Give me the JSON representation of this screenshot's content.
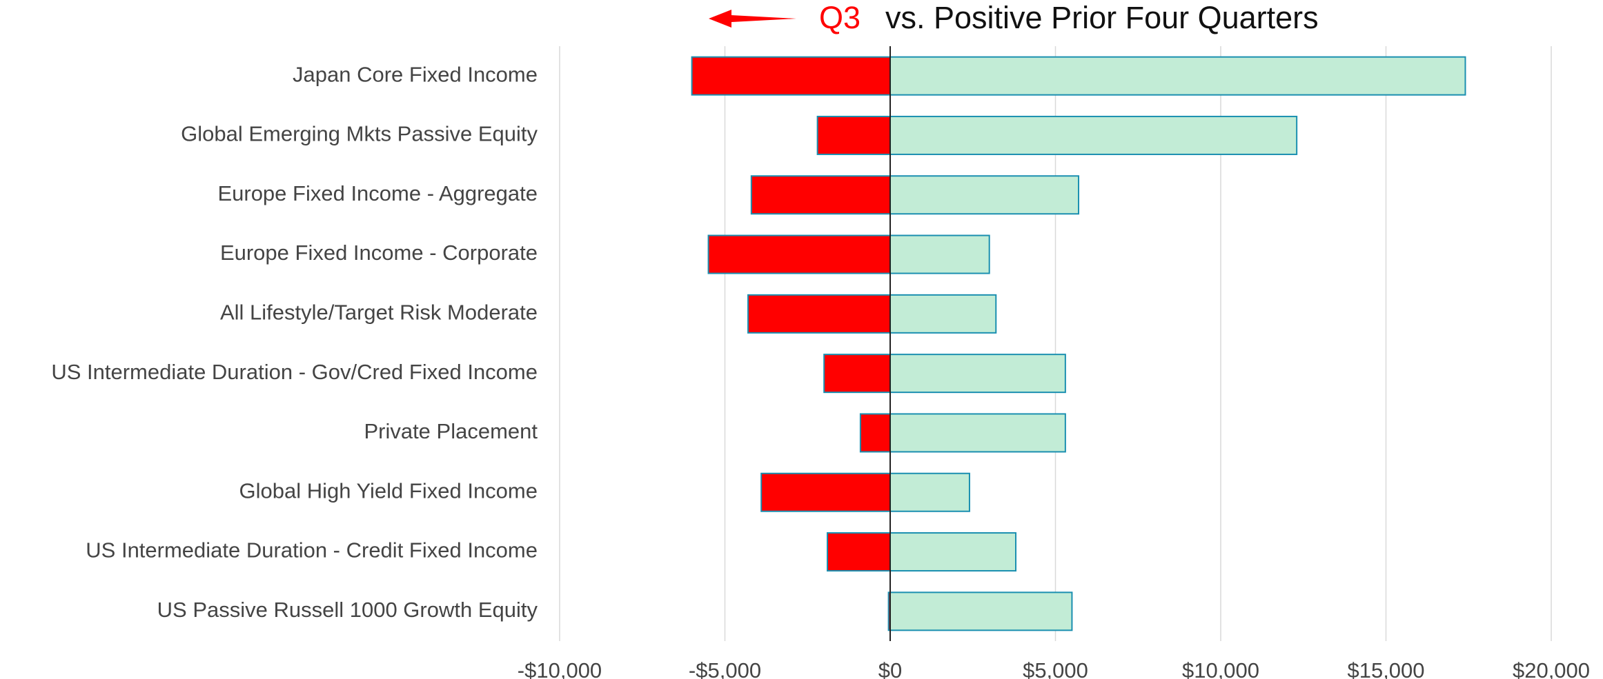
{
  "chart_data": {
    "type": "bar",
    "orientation": "horizontal",
    "title": "vs. Positive Prior Four Quarters",
    "categories": [
      "Japan Core Fixed Income",
      "Global Emerging Mkts Passive Equity",
      "Europe Fixed Income - Aggregate",
      "Europe Fixed Income - Corporate",
      "All Lifestyle/Target Risk Moderate",
      "US Intermediate Duration - Gov/Cred Fixed Income",
      "Private Placement",
      "Global High Yield Fixed Income",
      "US Intermediate Duration - Credit Fixed Income",
      "US Passive Russell 1000 Growth Equity"
    ],
    "series": [
      {
        "name": "Q3",
        "color": "#ff0000",
        "values": [
          -6000,
          -2200,
          -4200,
          -5500,
          -4300,
          -2000,
          -900,
          -3900,
          -1900,
          -50
        ]
      },
      {
        "color": "#c2ecd6",
        "values": [
          17400,
          12300,
          5700,
          3000,
          3200,
          5300,
          5300,
          2400,
          3800,
          5500
        ]
      }
    ],
    "xlim": [
      -10000,
      20000
    ],
    "xticks": [
      {
        "value": -10000,
        "label": "-$10,000"
      },
      {
        "value": -5000,
        "label": "-$5,000"
      },
      {
        "value": 0,
        "label": "$0"
      },
      {
        "value": 5000,
        "label": "$5,000"
      },
      {
        "value": 10000,
        "label": "$10,000"
      },
      {
        "value": 15000,
        "label": "$15,000"
      },
      {
        "value": 20000,
        "label": "$20,000"
      }
    ],
    "grid": true
  }
}
